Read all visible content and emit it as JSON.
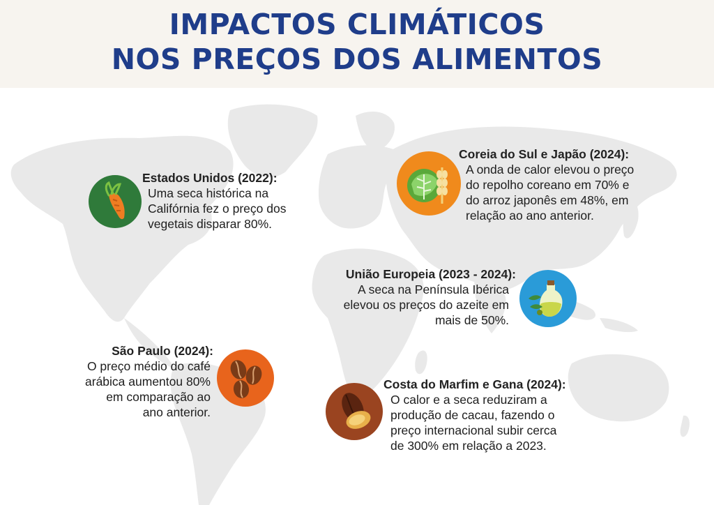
{
  "title": {
    "line1": "IMPACTOS CLIMÁTICOS",
    "line2": "NOS PREÇOS DOS ALIMENTOS"
  },
  "colors": {
    "title": "#1f3d8a",
    "header_bg": "#f7f4ef",
    "map": "#e9e9e9",
    "usa_circle": "#2f7a3a",
    "korea_circle": "#f08a1c",
    "eu_circle": "#2a9bd8",
    "brazil_circle": "#e8641c",
    "cocoa_circle": "#9a4420"
  },
  "items": [
    {
      "icon": "carrot-icon",
      "heading": "Estados Unidos (2022):",
      "lines": [
        "Uma seca histórica na",
        "Califórnia fez o preço dos",
        "vegetais disparar 80%."
      ]
    },
    {
      "icon": "cabbage-rice-icon",
      "heading": "Coreia do Sul e Japão (2024):",
      "lines": [
        "A onda de calor elevou o preço",
        "do repolho coreano em 70% e",
        "do arroz japonês em 48%, em",
        "relação ao ano anterior."
      ]
    },
    {
      "icon": "olive-oil-icon",
      "heading": "União Europeia (2023 - 2024):",
      "lines": [
        "A seca na Península Ibérica",
        "elevou os preços do azeite em",
        "mais de 50%."
      ]
    },
    {
      "icon": "coffee-beans-icon",
      "heading": "São Paulo (2024):",
      "lines": [
        "O preço médio do café",
        "arábica aumentou 80%",
        "em comparação ao",
        "ano anterior."
      ]
    },
    {
      "icon": "cocoa-pod-icon",
      "heading": "Costa do Marfim e Gana (2024):",
      "lines": [
        "O calor e a seca reduziram a",
        "produção de cacau, fazendo o",
        "preço internacional subir cerca",
        "de 300% em relação a 2023."
      ]
    }
  ]
}
